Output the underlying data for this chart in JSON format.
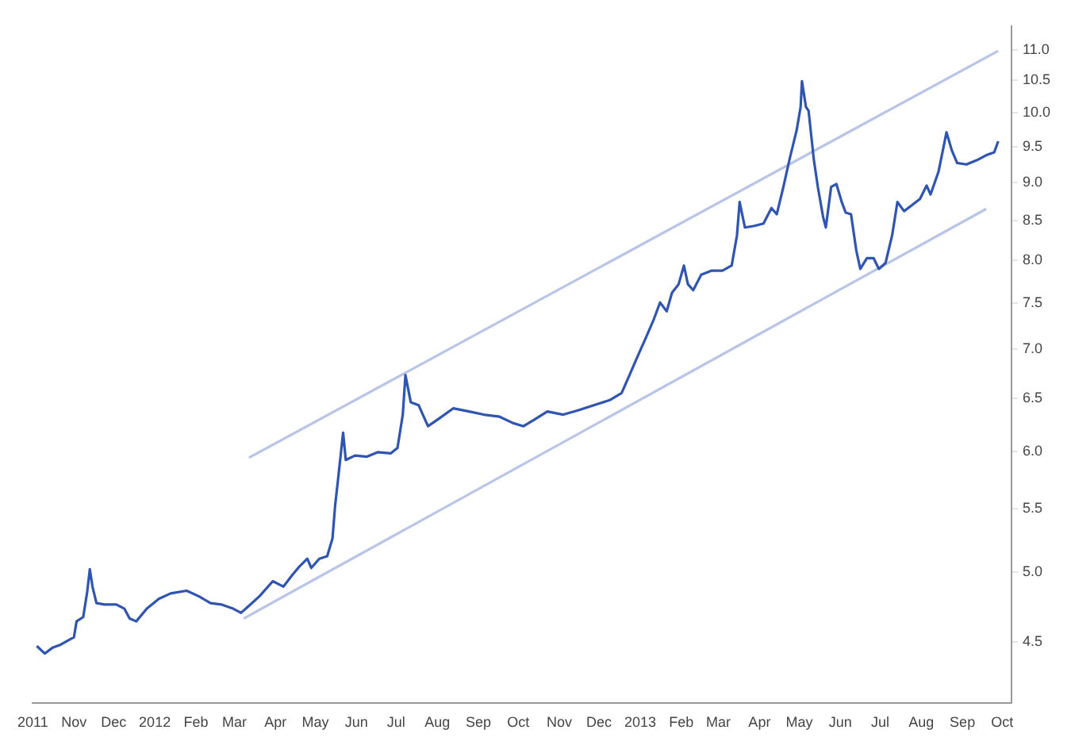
{
  "chart_data": {
    "type": "line",
    "log": "y",
    "grid": false,
    "legend": false,
    "marker": "none",
    "line_style": "solid",
    "xlim": [
      "2011-10-01",
      "2013-10-08"
    ],
    "xticks": [
      {
        "value": "2011-10-01",
        "label": "2011"
      },
      {
        "value": "2011-11-01",
        "label": "Nov"
      },
      {
        "value": "2011-12-01",
        "label": "Dec"
      },
      {
        "value": "2012-01-01",
        "label": "2012"
      },
      {
        "value": "2012-02-01",
        "label": "Feb"
      },
      {
        "value": "2012-03-01",
        "label": "Mar"
      },
      {
        "value": "2012-04-01",
        "label": "Apr"
      },
      {
        "value": "2012-05-01",
        "label": "May"
      },
      {
        "value": "2012-06-01",
        "label": "Jun"
      },
      {
        "value": "2012-07-01",
        "label": "Jul"
      },
      {
        "value": "2012-08-01",
        "label": "Aug"
      },
      {
        "value": "2012-09-01",
        "label": "Sep"
      },
      {
        "value": "2012-10-01",
        "label": "Oct"
      },
      {
        "value": "2012-11-01",
        "label": "Nov"
      },
      {
        "value": "2012-12-01",
        "label": "Dec"
      },
      {
        "value": "2013-01-01",
        "label": "2013"
      },
      {
        "value": "2013-02-01",
        "label": "Feb"
      },
      {
        "value": "2013-03-01",
        "label": "Mar"
      },
      {
        "value": "2013-04-01",
        "label": "Apr"
      },
      {
        "value": "2013-05-01",
        "label": "May"
      },
      {
        "value": "2013-06-01",
        "label": "Jun"
      },
      {
        "value": "2013-07-01",
        "label": "Jul"
      },
      {
        "value": "2013-08-01",
        "label": "Aug"
      },
      {
        "value": "2013-09-01",
        "label": "Sep"
      },
      {
        "value": "2013-10-01",
        "label": "Oct"
      }
    ],
    "ylim": [
      4.13,
      11.4
    ],
    "yticks": [
      4.5,
      {
        "value": 5,
        "label": "5.0"
      },
      5.5,
      {
        "value": 6,
        "label": "6.0"
      },
      6.5,
      {
        "value": 7,
        "label": "7.0"
      },
      7.5,
      {
        "value": 8,
        "label": "8.0"
      },
      8.5,
      {
        "value": 9,
        "label": "9.0"
      },
      9.5,
      {
        "value": 10,
        "label": "10.0"
      },
      10.5,
      {
        "value": 11,
        "label": "11.0"
      }
    ],
    "series": [
      {
        "type": "line",
        "color": "#2f55b0",
        "x": [
          "2011-10-04",
          "2011-10-10",
          "2011-10-16",
          "2011-10-22",
          "2011-11-01",
          "2011-11-03",
          "2011-11-08",
          "2011-11-11",
          "2011-11-13",
          "2011-11-15",
          "2011-11-18",
          "2011-11-24",
          "2011-12-03",
          "2011-12-09",
          "2011-12-13",
          "2011-12-18",
          "2011-12-26",
          "2012-01-04",
          "2012-01-13",
          "2012-01-25",
          "2012-02-03",
          "2012-02-12",
          "2012-02-20",
          "2012-02-29",
          "2012-03-06",
          "2012-03-12",
          "2012-03-20",
          "2012-03-30",
          "2012-04-07",
          "2012-04-14",
          "2012-04-19",
          "2012-04-25",
          "2012-04-28",
          "2012-05-04",
          "2012-05-10",
          "2012-05-14",
          "2012-05-16",
          "2012-05-18",
          "2012-05-22",
          "2012-05-24",
          "2012-05-31",
          "2012-06-09",
          "2012-06-17",
          "2012-06-27",
          "2012-07-02",
          "2012-07-06",
          "2012-07-08",
          "2012-07-12",
          "2012-07-18",
          "2012-07-25",
          "2012-08-01",
          "2012-08-13",
          "2012-08-25",
          "2012-09-05",
          "2012-09-17",
          "2012-09-27",
          "2012-10-05",
          "2012-10-13",
          "2012-10-23",
          "2012-11-04",
          "2012-11-15",
          "2012-11-27",
          "2012-12-09",
          "2012-12-18",
          "2012-12-24",
          "2012-12-30",
          "2013-01-05",
          "2013-01-11",
          "2013-01-16",
          "2013-01-21",
          "2013-01-25",
          "2013-01-30",
          "2013-02-03",
          "2013-02-06",
          "2013-02-10",
          "2013-02-16",
          "2013-02-24",
          "2013-03-04",
          "2013-03-11",
          "2013-03-15",
          "2013-03-17",
          "2013-03-21",
          "2013-03-28",
          "2013-04-04",
          "2013-04-10",
          "2013-04-14",
          "2013-04-19",
          "2013-04-24",
          "2013-04-29",
          "2013-05-02",
          "2013-05-03",
          "2013-05-06",
          "2013-05-08",
          "2013-05-12",
          "2013-05-15",
          "2013-05-19",
          "2013-05-21",
          "2013-05-25",
          "2013-05-29",
          "2013-06-02",
          "2013-06-05",
          "2013-06-09",
          "2013-06-13",
          "2013-06-16",
          "2013-06-21",
          "2013-06-26",
          "2013-06-30",
          "2013-07-05",
          "2013-07-10",
          "2013-07-14",
          "2013-07-19",
          "2013-07-25",
          "2013-07-31",
          "2013-08-05",
          "2013-08-08",
          "2013-08-14",
          "2013-08-20",
          "2013-08-24",
          "2013-08-28",
          "2013-09-04",
          "2013-09-12",
          "2013-09-19",
          "2013-09-25",
          "2013-09-28"
        ],
        "values": [
          4.47,
          4.42,
          4.46,
          4.48,
          4.53,
          4.64,
          4.67,
          4.85,
          5.02,
          4.89,
          4.77,
          4.76,
          4.76,
          4.73,
          4.66,
          4.64,
          4.73,
          4.8,
          4.84,
          4.86,
          4.82,
          4.77,
          4.76,
          4.73,
          4.7,
          4.75,
          4.82,
          4.93,
          4.89,
          4.98,
          5.04,
          5.1,
          5.03,
          5.1,
          5.12,
          5.26,
          5.53,
          5.73,
          6.17,
          5.92,
          5.96,
          5.95,
          5.99,
          5.98,
          6.03,
          6.34,
          6.73,
          6.46,
          6.43,
          6.23,
          6.29,
          6.4,
          6.37,
          6.34,
          6.32,
          6.26,
          6.23,
          6.29,
          6.37,
          6.34,
          6.38,
          6.43,
          6.48,
          6.55,
          6.73,
          6.92,
          7.11,
          7.31,
          7.51,
          7.41,
          7.62,
          7.72,
          7.94,
          7.72,
          7.65,
          7.83,
          7.88,
          7.88,
          7.94,
          8.31,
          8.74,
          8.41,
          8.43,
          8.46,
          8.66,
          8.58,
          8.94,
          9.35,
          9.74,
          10.09,
          10.49,
          10.09,
          10.03,
          9.31,
          8.94,
          8.54,
          8.41,
          8.94,
          8.98,
          8.74,
          8.6,
          8.58,
          8.12,
          7.9,
          8.03,
          8.03,
          7.9,
          7.97,
          8.31,
          8.74,
          8.62,
          8.7,
          8.78,
          8.96,
          8.84,
          9.15,
          9.71,
          9.45,
          9.27,
          9.25,
          9.31,
          9.38,
          9.42,
          9.58
        ]
      },
      {
        "type": "line",
        "color": "#b8c4e8",
        "x": [
          "2012-03-12",
          "2013-09-28"
        ],
        "values": [
          5.94,
          10.98
        ]
      },
      {
        "type": "line",
        "color": "#b8c4e8",
        "x": [
          "2012-03-08",
          "2013-09-19"
        ],
        "values": [
          4.66,
          8.65
        ]
      }
    ]
  }
}
